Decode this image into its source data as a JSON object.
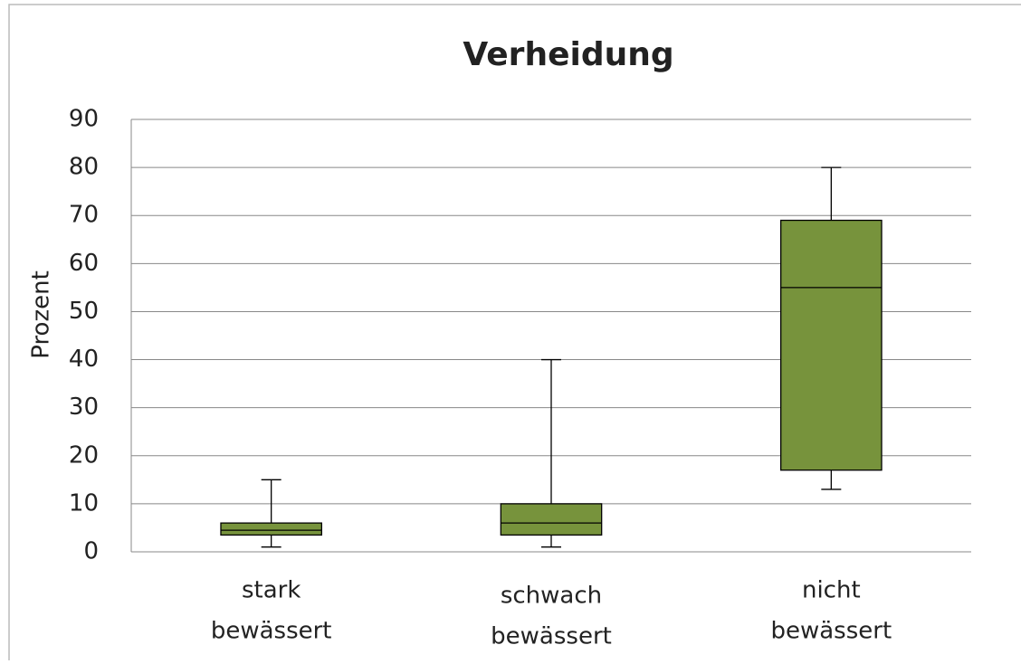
{
  "chart_data": {
    "type": "box",
    "title": "Verheidung",
    "y_label": "Prozent",
    "categories": [
      [
        "stark",
        "bewässert"
      ],
      [
        "schwach",
        "bewässert"
      ],
      [
        "nicht",
        "bewässert"
      ]
    ],
    "boxes": [
      {
        "min": 1,
        "q1": 3.5,
        "median": 4.5,
        "q3": 6,
        "max": 15
      },
      {
        "min": 1,
        "q1": 3.5,
        "median": 6,
        "q3": 10,
        "max": 40
      },
      {
        "min": 13,
        "q1": 17,
        "median": 55,
        "q3": 69,
        "max": 80
      }
    ],
    "color": "#77933c",
    "ylim": [
      0,
      90
    ],
    "yticks": [
      0,
      10,
      20,
      30,
      40,
      50,
      60,
      70,
      80,
      90
    ],
    "grid": true
  }
}
